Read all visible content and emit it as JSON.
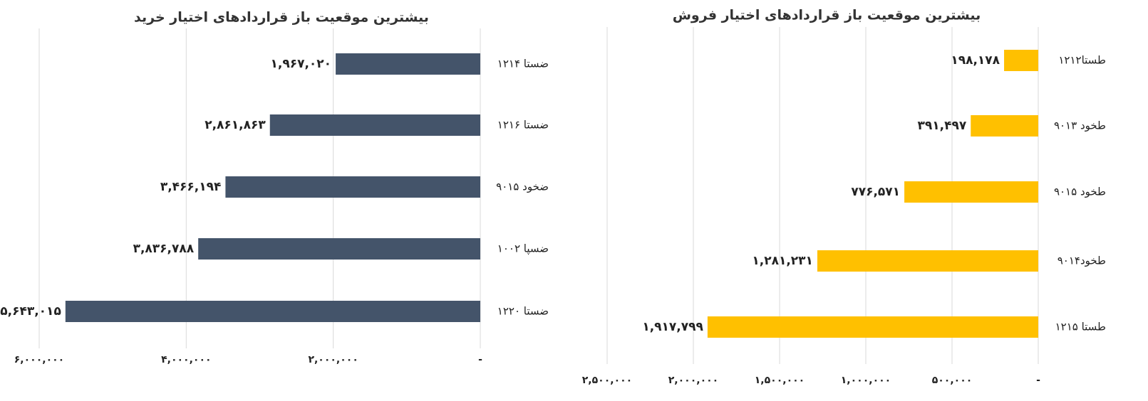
{
  "chart_data": [
    {
      "type": "bar",
      "orientation": "horizontal",
      "x_reversed": true,
      "grid": true,
      "color": "#44546a",
      "title": "بیشترین موقعیت باز قراردادهای اختیار خرید",
      "categories": [
        "ضستا ۱۲۱۴",
        "ضستا ۱۲۱۶",
        "ضخود ۹۰۱۵",
        "ضسپا ۱۰۰۲",
        "ضستا ۱۲۲۰"
      ],
      "values": [
        1967020,
        2861863,
        3466194,
        3836788,
        5643015
      ],
      "value_labels": [
        "۱,۹۶۷,۰۲۰",
        "۲,۸۶۱,۸۶۳",
        "۳,۴۶۶,۱۹۴",
        "۳,۸۳۶,۷۸۸",
        "۵,۶۴۳,۰۱۵"
      ],
      "xlim": [
        0,
        6000000
      ],
      "xticks": [
        {
          "value": 0,
          "label": "-"
        },
        {
          "value": 2000000,
          "label": "۲,۰۰۰,۰۰۰"
        },
        {
          "value": 4000000,
          "label": "۴,۰۰۰,۰۰۰"
        },
        {
          "value": 6000000,
          "label": "۶,۰۰۰,۰۰۰"
        }
      ]
    },
    {
      "type": "bar",
      "orientation": "horizontal",
      "x_reversed": true,
      "grid": true,
      "color": "#ffc000",
      "title": "بیشترین موقعیت باز قراردادهای اختیار فروش",
      "categories": [
        "طستا۱۲۱۲",
        "طخود ۹۰۱۳",
        "طخود ۹۰۱۵",
        "طخود۹۰۱۴",
        "طستا ۱۲۱۵"
      ],
      "values": [
        198178,
        391497,
        776571,
        1281231,
        1917799
      ],
      "value_labels": [
        "۱۹۸,۱۷۸",
        "۳۹۱,۴۹۷",
        "۷۷۶,۵۷۱",
        "۱,۲۸۱,۲۳۱",
        "۱,۹۱۷,۷۹۹"
      ],
      "xlim": [
        0,
        2500000
      ],
      "xticks": [
        {
          "value": 0,
          "label": "-"
        },
        {
          "value": 500000,
          "label": "۵۰۰,۰۰۰"
        },
        {
          "value": 1000000,
          "label": "۱,۰۰۰,۰۰۰"
        },
        {
          "value": 1500000,
          "label": "۱,۵۰۰,۰۰۰"
        },
        {
          "value": 2000000,
          "label": "۲,۰۰۰,۰۰۰"
        },
        {
          "value": 2500000,
          "label": "۲,۵۰۰,۰۰۰"
        }
      ]
    }
  ]
}
